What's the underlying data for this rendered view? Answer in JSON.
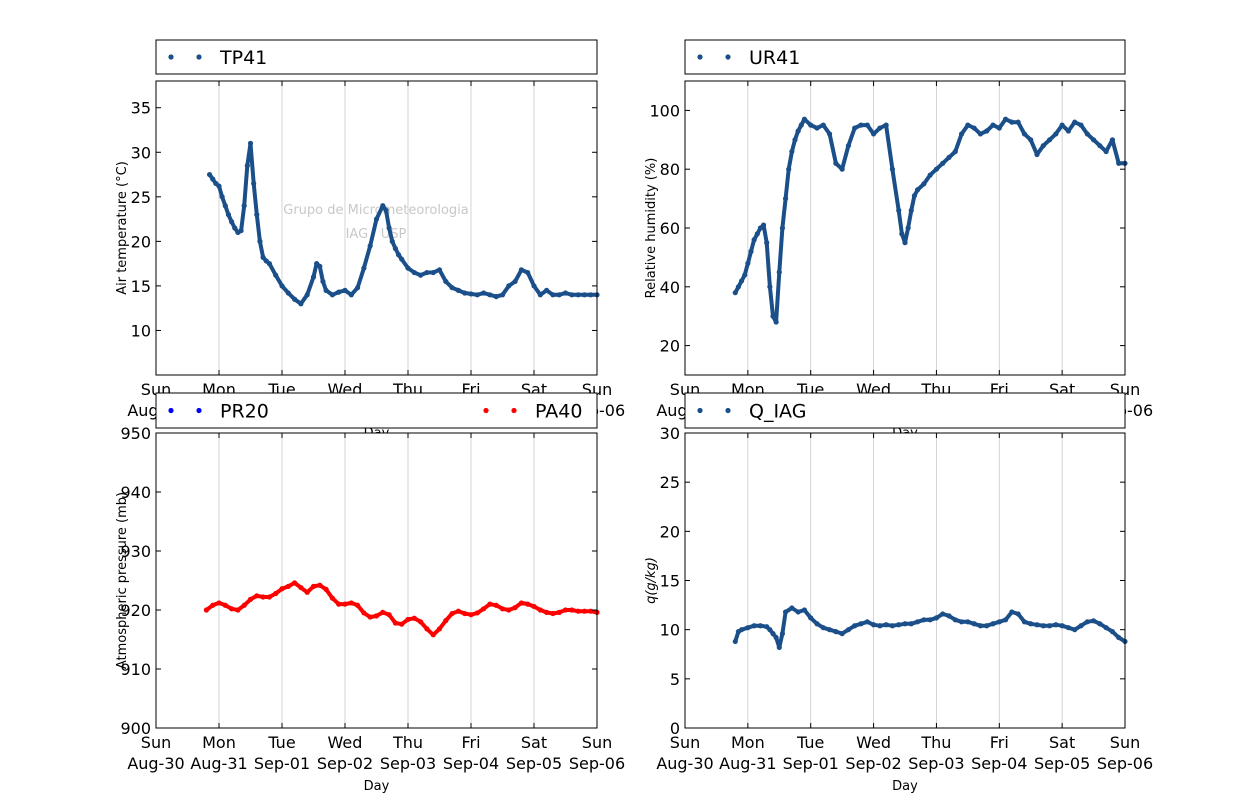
{
  "watermark": {
    "line1": "Grupo de Micrometeorologia",
    "line2": "IAG / USP"
  },
  "x_axis": {
    "label": "Day",
    "ticks": [
      {
        "day": "Sun",
        "date": "Aug-30"
      },
      {
        "day": "Mon",
        "date": "Aug-31"
      },
      {
        "day": "Tue",
        "date": "Sep-01"
      },
      {
        "day": "Wed",
        "date": "Sep-02"
      },
      {
        "day": "Thu",
        "date": "Sep-03"
      },
      {
        "day": "Fri",
        "date": "Sep-04"
      },
      {
        "day": "Sat",
        "date": "Sep-05"
      },
      {
        "day": "Sun",
        "date": "Sep-06"
      }
    ]
  },
  "colors": {
    "series_blue": "#1a4f8a",
    "series_red": "#ff0000",
    "legend_blue": "#0000ff"
  },
  "chart_data": [
    {
      "type": "scatter",
      "ylabel": "Air temperature (°C)",
      "ylim": [
        5,
        38
      ],
      "yticks": [
        10,
        15,
        20,
        25,
        30,
        35
      ],
      "xlim": [
        0,
        7
      ],
      "grid": "vertical",
      "legend_placement": "top",
      "series": [
        {
          "name": "TP41",
          "color": "#1a4f8a",
          "x": [
            0.85,
            0.9,
            0.95,
            1.0,
            1.05,
            1.1,
            1.15,
            1.2,
            1.25,
            1.3,
            1.35,
            1.4,
            1.45,
            1.5,
            1.55,
            1.6,
            1.65,
            1.7,
            1.75,
            1.8,
            1.9,
            2.0,
            2.1,
            2.2,
            2.3,
            2.4,
            2.5,
            2.55,
            2.6,
            2.65,
            2.7,
            2.8,
            2.9,
            3.0,
            3.1,
            3.2,
            3.3,
            3.4,
            3.5,
            3.6,
            3.65,
            3.7,
            3.75,
            3.8,
            3.85,
            3.9,
            4.0,
            4.1,
            4.2,
            4.3,
            4.4,
            4.5,
            4.6,
            4.7,
            4.8,
            4.9,
            5.0,
            5.1,
            5.2,
            5.3,
            5.4,
            5.5,
            5.6,
            5.7,
            5.8,
            5.9,
            6.0,
            6.1,
            6.2,
            6.3,
            6.4,
            6.5,
            6.6,
            6.7,
            6.8,
            6.9,
            7.0
          ],
          "y": [
            27.5,
            27.0,
            26.5,
            26.2,
            25.0,
            24.0,
            23.0,
            22.2,
            21.5,
            21.0,
            21.2,
            24.0,
            28.5,
            31.0,
            26.5,
            23.0,
            20.0,
            18.2,
            17.8,
            17.5,
            16.2,
            15.0,
            14.2,
            13.5,
            13.0,
            14.0,
            16.0,
            17.5,
            17.2,
            15.5,
            14.5,
            14.0,
            14.3,
            14.5,
            14.0,
            14.8,
            17.0,
            19.5,
            22.5,
            24.0,
            23.5,
            21.5,
            20.0,
            19.2,
            18.5,
            18.0,
            17.0,
            16.5,
            16.2,
            16.5,
            16.5,
            16.8,
            15.5,
            14.8,
            14.5,
            14.2,
            14.1,
            14.0,
            14.2,
            14.0,
            13.8,
            14.0,
            15.0,
            15.5,
            16.8,
            16.5,
            15.0,
            14.0,
            14.5,
            14.0,
            14.0,
            14.2,
            14.0,
            14.0,
            14.0,
            14.0,
            14.0
          ]
        }
      ]
    },
    {
      "type": "scatter",
      "ylabel": "Relative humidity (%)",
      "ylim": [
        10,
        110
      ],
      "yticks": [
        20,
        40,
        60,
        80,
        100
      ],
      "xlim": [
        0,
        7
      ],
      "grid": "vertical",
      "legend_placement": "top",
      "series": [
        {
          "name": "UR41",
          "color": "#1a4f8a",
          "x": [
            0.8,
            0.85,
            0.9,
            0.95,
            1.0,
            1.05,
            1.1,
            1.15,
            1.2,
            1.25,
            1.3,
            1.35,
            1.4,
            1.45,
            1.5,
            1.55,
            1.6,
            1.65,
            1.7,
            1.75,
            1.8,
            1.85,
            1.9,
            2.0,
            2.1,
            2.2,
            2.3,
            2.4,
            2.5,
            2.6,
            2.7,
            2.8,
            2.9,
            3.0,
            3.1,
            3.2,
            3.3,
            3.4,
            3.45,
            3.5,
            3.55,
            3.6,
            3.65,
            3.7,
            3.8,
            3.9,
            4.0,
            4.1,
            4.2,
            4.3,
            4.4,
            4.5,
            4.6,
            4.7,
            4.8,
            4.9,
            5.0,
            5.1,
            5.2,
            5.3,
            5.4,
            5.5,
            5.6,
            5.7,
            5.8,
            5.9,
            6.0,
            6.1,
            6.2,
            6.3,
            6.4,
            6.5,
            6.6,
            6.7,
            6.8,
            6.9,
            7.0
          ],
          "y": [
            38,
            40,
            42,
            44,
            48,
            52,
            56,
            58,
            60,
            61,
            55,
            40,
            30,
            28,
            45,
            60,
            70,
            80,
            86,
            90,
            93,
            95,
            97,
            95,
            94,
            95,
            92,
            82,
            80,
            88,
            94,
            95,
            95,
            92,
            94,
            95,
            80,
            66,
            58,
            55,
            60,
            66,
            71,
            73,
            75,
            78,
            80,
            82,
            84,
            86,
            92,
            95,
            94,
            92,
            93,
            95,
            94,
            97,
            96,
            96,
            92,
            90,
            85,
            88,
            90,
            92,
            95,
            93,
            96,
            95,
            92,
            90,
            88,
            86,
            90,
            82,
            82
          ]
        }
      ]
    },
    {
      "type": "scatter",
      "ylabel": "Atmospheric pressure (mb)",
      "ylim": [
        900,
        950
      ],
      "yticks": [
        900,
        910,
        920,
        930,
        940,
        950
      ],
      "xlim": [
        0,
        7
      ],
      "grid": "vertical",
      "legend_placement": "top",
      "series": [
        {
          "name": "PR20",
          "color": "#0000ff",
          "x": [],
          "y": []
        },
        {
          "name": "PA40",
          "color": "#ff0000",
          "x": [
            0.8,
            0.9,
            1.0,
            1.1,
            1.2,
            1.3,
            1.4,
            1.5,
            1.6,
            1.7,
            1.8,
            1.9,
            2.0,
            2.1,
            2.2,
            2.3,
            2.4,
            2.5,
            2.6,
            2.7,
            2.8,
            2.9,
            3.0,
            3.1,
            3.2,
            3.3,
            3.4,
            3.5,
            3.6,
            3.7,
            3.8,
            3.9,
            4.0,
            4.1,
            4.2,
            4.3,
            4.4,
            4.5,
            4.6,
            4.7,
            4.8,
            4.9,
            5.0,
            5.1,
            5.2,
            5.3,
            5.4,
            5.5,
            5.6,
            5.7,
            5.8,
            5.9,
            6.0,
            6.1,
            6.2,
            6.3,
            6.4,
            6.5,
            6.6,
            6.7,
            6.8,
            6.9,
            7.0
          ],
          "y": [
            920.0,
            920.8,
            921.2,
            920.8,
            920.2,
            920.0,
            920.8,
            921.8,
            922.4,
            922.2,
            922.2,
            922.8,
            923.6,
            924.0,
            924.6,
            923.8,
            923.0,
            924.0,
            924.2,
            923.5,
            922.0,
            921.0,
            921.0,
            921.2,
            920.8,
            919.5,
            918.8,
            919.0,
            919.6,
            919.2,
            917.8,
            917.6,
            918.4,
            918.6,
            918.0,
            916.8,
            915.8,
            916.8,
            918.2,
            919.4,
            919.8,
            919.4,
            919.2,
            919.5,
            920.2,
            921.0,
            920.8,
            920.2,
            920.0,
            920.4,
            921.2,
            921.0,
            920.6,
            920.0,
            919.6,
            919.4,
            919.6,
            920.0,
            920.0,
            919.8,
            919.8,
            919.8,
            919.6
          ]
        }
      ]
    },
    {
      "type": "scatter",
      "ylabel": "q(g/kg)",
      "ylim": [
        0,
        30
      ],
      "yticks": [
        0,
        5,
        10,
        15,
        20,
        25,
        30
      ],
      "xlim": [
        0,
        7
      ],
      "grid": "vertical",
      "legend_placement": "top",
      "series": [
        {
          "name": "Q_IAG",
          "color": "#1a4f8a",
          "x": [
            0.8,
            0.85,
            0.9,
            1.0,
            1.1,
            1.2,
            1.3,
            1.35,
            1.4,
            1.45,
            1.5,
            1.55,
            1.6,
            1.7,
            1.8,
            1.9,
            2.0,
            2.1,
            2.2,
            2.3,
            2.4,
            2.5,
            2.6,
            2.7,
            2.8,
            2.9,
            3.0,
            3.1,
            3.2,
            3.3,
            3.4,
            3.5,
            3.6,
            3.7,
            3.8,
            3.9,
            4.0,
            4.1,
            4.2,
            4.3,
            4.4,
            4.5,
            4.6,
            4.7,
            4.8,
            4.9,
            5.0,
            5.1,
            5.2,
            5.3,
            5.4,
            5.5,
            5.6,
            5.7,
            5.8,
            5.9,
            6.0,
            6.1,
            6.2,
            6.3,
            6.4,
            6.5,
            6.6,
            6.7,
            6.8,
            6.9,
            7.0
          ],
          "y": [
            8.8,
            9.8,
            10.0,
            10.2,
            10.4,
            10.4,
            10.3,
            10.0,
            9.6,
            9.2,
            8.2,
            9.6,
            11.8,
            12.2,
            11.8,
            12.0,
            11.2,
            10.6,
            10.2,
            10.0,
            9.8,
            9.6,
            10.0,
            10.4,
            10.6,
            10.8,
            10.5,
            10.4,
            10.5,
            10.4,
            10.5,
            10.6,
            10.6,
            10.8,
            11.0,
            11.0,
            11.2,
            11.6,
            11.4,
            11.0,
            10.8,
            10.8,
            10.6,
            10.4,
            10.4,
            10.6,
            10.8,
            11.0,
            11.8,
            11.6,
            10.8,
            10.6,
            10.5,
            10.4,
            10.4,
            10.5,
            10.4,
            10.2,
            10.0,
            10.4,
            10.8,
            10.9,
            10.6,
            10.2,
            9.8,
            9.2,
            8.8
          ]
        }
      ]
    }
  ]
}
